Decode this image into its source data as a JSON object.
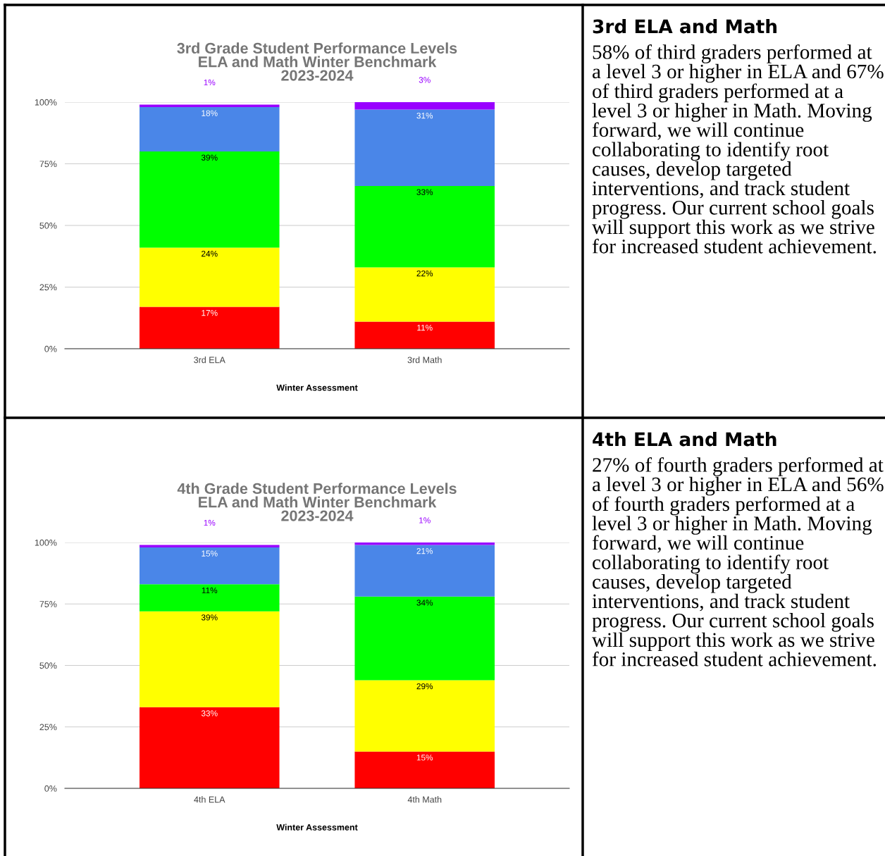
{
  "chart_data": [
    {
      "type": "bar",
      "stacked": true,
      "title": "3rd Grade Student Performance Levels\nELA and Math Winter Benchmark\n2023-2024",
      "xlabel": "Winter Assessment",
      "categories": [
        "3rd ELA",
        "3rd Math"
      ],
      "ylim": [
        0,
        100
      ],
      "yticks": [
        {
          "value": 0,
          "label": "0%"
        },
        {
          "value": 25,
          "label": "25%"
        },
        {
          "value": 50,
          "label": "50%"
        },
        {
          "value": 75,
          "label": "75%"
        },
        {
          "value": 100,
          "label": "100%"
        }
      ],
      "grid": "y",
      "legend": false,
      "series": [
        {
          "color": "#ff0000",
          "values": [
            17,
            11
          ],
          "value_labels": [
            "17%",
            "11%"
          ]
        },
        {
          "color": "#ffff00",
          "values": [
            24,
            22
          ],
          "value_labels": [
            "24%",
            "22%"
          ]
        },
        {
          "color": "#00ff00",
          "values": [
            39,
            33
          ],
          "value_labels": [
            "39%",
            "33%"
          ]
        },
        {
          "color": "#4a86e8",
          "values": [
            18,
            31
          ],
          "value_labels": [
            "18%",
            "31%"
          ]
        },
        {
          "color": "#9900ff",
          "values": [
            1,
            3
          ],
          "value_labels": [
            "1%",
            "3%"
          ]
        }
      ]
    },
    {
      "type": "other",
      "title": "3rd ELA and Math",
      "annotations": [
        "58% of third graders performed at a level 3 or higher in ELA and 67% of third graders performed at a level 3 or higher in Math. Moving forward, we will continue collaborating to identify root causes, develop targeted interventions, and track student progress. Our current school goals will support this work as we strive for increased student achievement."
      ]
    },
    {
      "type": "bar",
      "stacked": true,
      "title": "4th Grade Student Performance Levels\nELA and Math Winter Benchmark\n2023-2024",
      "xlabel": "Winter Assessment",
      "categories": [
        "4th ELA",
        "4th Math"
      ],
      "ylim": [
        0,
        100
      ],
      "yticks": [
        {
          "value": 0,
          "label": "0%"
        },
        {
          "value": 25,
          "label": "25%"
        },
        {
          "value": 50,
          "label": "50%"
        },
        {
          "value": 75,
          "label": "75%"
        },
        {
          "value": 100,
          "label": "100%"
        }
      ],
      "grid": "y",
      "legend": false,
      "series": [
        {
          "color": "#ff0000",
          "values": [
            33,
            15
          ],
          "value_labels": [
            "33%",
            "15%"
          ]
        },
        {
          "color": "#ffff00",
          "values": [
            39,
            29
          ],
          "value_labels": [
            "39%",
            "29%"
          ]
        },
        {
          "color": "#00ff00",
          "values": [
            11,
            34
          ],
          "value_labels": [
            "11%",
            "34%"
          ]
        },
        {
          "color": "#4a86e8",
          "values": [
            15,
            21
          ],
          "value_labels": [
            "15%",
            "21%"
          ]
        },
        {
          "color": "#9900ff",
          "values": [
            1,
            1
          ],
          "value_labels": [
            "1%",
            "1%"
          ]
        }
      ]
    },
    {
      "type": "other",
      "title": "4th ELA and Math",
      "annotations": [
        "27% of fourth graders performed at a level 3 or higher in ELA and 56% of fourth graders performed at a level 3 or higher in Math. Moving forward, we will continue collaborating to identify root causes, develop targeted interventions, and track student progress. Our current school goals will support this work as we strive for increased student achievement."
      ]
    }
  ]
}
